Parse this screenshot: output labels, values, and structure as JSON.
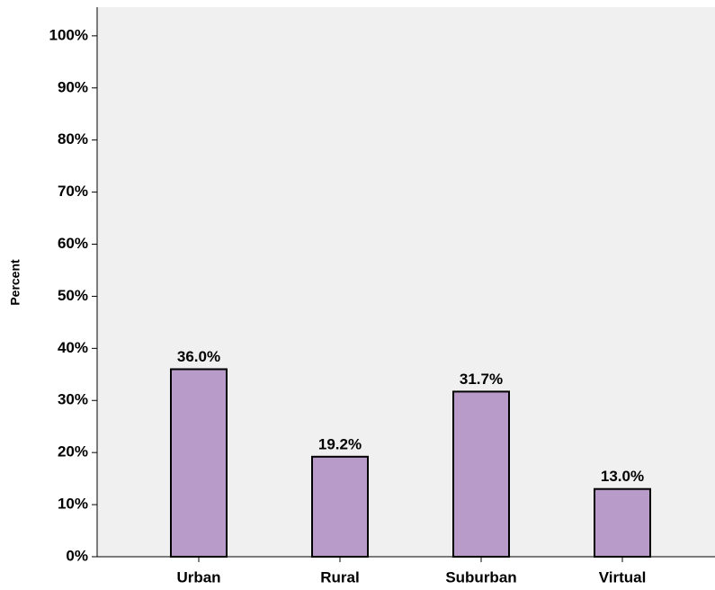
{
  "chart_data": {
    "type": "bar",
    "y_label": "Percent",
    "categories": [
      "Urban",
      "Rural",
      "Suburban",
      "Virtual"
    ],
    "values": [
      36.0,
      19.2,
      31.7,
      13.0
    ],
    "value_labels": [
      "36.0%",
      "19.2%",
      "31.7%",
      "13.0%"
    ],
    "color": "#b89bc9",
    "ylim": [
      0,
      105.5
    ],
    "yticks": [
      {
        "value": 0,
        "label": "0%"
      },
      {
        "value": 10,
        "label": "10%"
      },
      {
        "value": 20,
        "label": "20%"
      },
      {
        "value": 30,
        "label": "30%"
      },
      {
        "value": 40,
        "label": "40%"
      },
      {
        "value": 50,
        "label": "50%"
      },
      {
        "value": 60,
        "label": "60%"
      },
      {
        "value": 70,
        "label": "70%"
      },
      {
        "value": 80,
        "label": "80%"
      },
      {
        "value": 90,
        "label": "90%"
      },
      {
        "value": 100,
        "label": "100%"
      }
    ],
    "grid": false
  }
}
